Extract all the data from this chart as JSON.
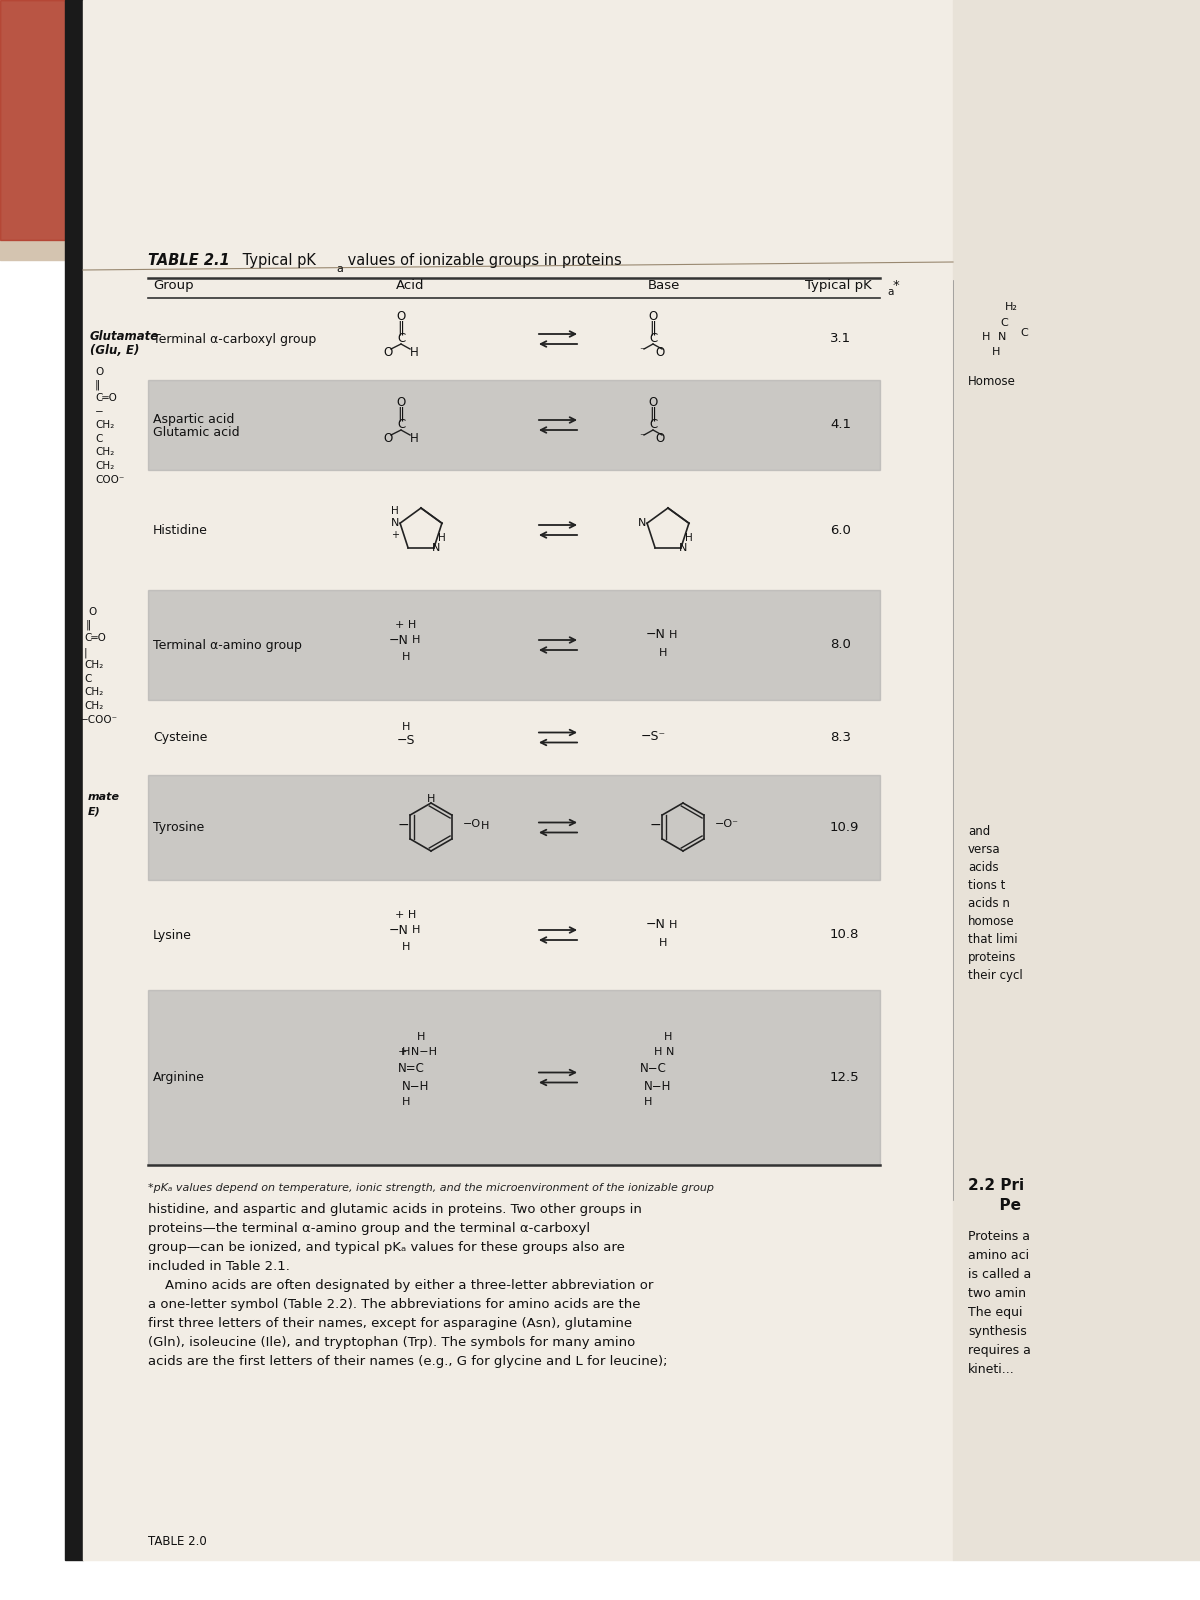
{
  "bg_page": "#f0ece4",
  "bg_right": "#e8e0d4",
  "bg_top": "#c8b8a8",
  "shaded_color": "#b0b0b0",
  "text_color": "#1a1a1a",
  "table_title": "TABLE 2.1",
  "table_subtitle": " Typical pK",
  "table_subtitle_sub": "a",
  "table_subtitle_end": " values of ionizable groups in proteins",
  "col_group_label": "Group",
  "col_acid_label": "Acid",
  "col_base_label": "Base",
  "col_pka_label": "Typical pK",
  "col_pka_sub": "a",
  "col_pka_star": "*",
  "footnote": "*pKₐ values depend on temperature, ionic strength, and the microenvironment of the ionizable group",
  "rows": [
    {
      "group": "Terminal α-carboxyl group",
      "pka": "3.1",
      "shaded": false
    },
    {
      "group": "Aspartic acid\nGlutamic acid",
      "pka": "4.1",
      "shaded": true
    },
    {
      "group": "Histidine",
      "pka": "6.0",
      "shaded": false
    },
    {
      "group": "Terminal α-amino group",
      "pka": "8.0",
      "shaded": true
    },
    {
      "group": "Cysteine",
      "pka": "8.3",
      "shaded": false
    },
    {
      "group": "Tyrosine",
      "pka": "10.9",
      "shaded": true
    },
    {
      "group": "Lysine",
      "pka": "10.8",
      "shaded": false
    },
    {
      "group": "Arginine",
      "pka": "12.5",
      "shaded": true
    }
  ],
  "body_text": "histidine, and aspartic and glutamic acids in proteins. Two other groups in\nproteins—the terminal α-amino group and the terminal α-carboxyl\ngroup—can be ionized, and typical pKₐ values for these groups also are\nincluded in Table 2.1.\n    Amino acids are often designated by either a three-letter abbreviation or\na one-letter symbol (Table 2.2). The abbreviations for amino acids are the\nfirst three letters of their names, except for asparagine (Asn), glutamine\n(Gln), isoleucine (Ile), and tryptophan (Trp). The symbols for many amino\nacids are the first letters of their names (e.g., G for glycine and L for leucine);",
  "bottom_label": "TABLE 2.0"
}
